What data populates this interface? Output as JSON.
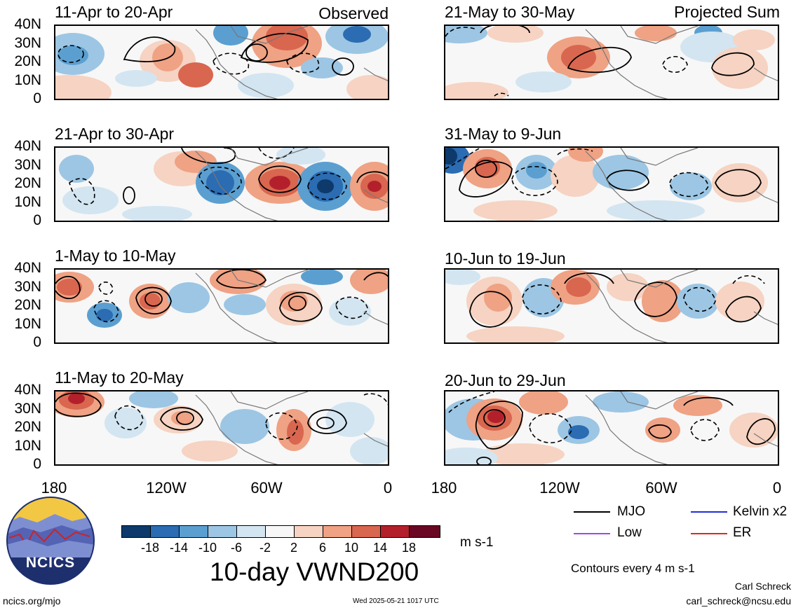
{
  "header": {
    "observed_label": "Observed",
    "projected_label": "Projected Sum"
  },
  "panels": [
    {
      "id": "p1",
      "title": "11-Apr to 20-Apr"
    },
    {
      "id": "p2",
      "title": "21-Apr to 30-Apr"
    },
    {
      "id": "p3",
      "title": "1-May to 10-May"
    },
    {
      "id": "p4",
      "title": "11-May to 20-May"
    },
    {
      "id": "p5",
      "title": "21-May to 30-May"
    },
    {
      "id": "p6",
      "title": "31-May to 9-Jun"
    },
    {
      "id": "p7",
      "title": "10-Jun to 19-Jun"
    },
    {
      "id": "p8",
      "title": "20-Jun to 29-Jun"
    }
  ],
  "axes": {
    "y_ticks": [
      "40N",
      "30N",
      "20N",
      "10N",
      "0"
    ],
    "x_ticks": [
      "180",
      "120W",
      "60W",
      "0"
    ]
  },
  "colorbar": {
    "colors": [
      "#0d3a6b",
      "#2b6cb2",
      "#5b9fd1",
      "#9cc6e4",
      "#d3e5f1",
      "#f7f7f7",
      "#f6d3c2",
      "#efa284",
      "#d9664f",
      "#b3202b",
      "#6a0722"
    ],
    "labels": [
      "-18",
      "-14",
      "-10",
      "-6",
      "-2",
      "2",
      "6",
      "10",
      "14",
      "18"
    ],
    "units": "m s-1"
  },
  "main_title": "10-day VWND200",
  "legend": {
    "items": [
      {
        "label": "MJO",
        "color": "#000000"
      },
      {
        "label": "Kelvin x2",
        "color": "#1f2fd6"
      },
      {
        "label": "Low",
        "color": "#a04adf"
      },
      {
        "label": "ER",
        "color": "#e0261e"
      }
    ],
    "contour_note": "Contours every 4 m s-1"
  },
  "footer": {
    "logo_text": "NCICS",
    "site": "ncics.org/mjo",
    "timestamp": "Wed 2025-05-21 1017 UTC",
    "author": "Carl Schreck",
    "email": "carl_schreck@ncsu.edu"
  }
}
